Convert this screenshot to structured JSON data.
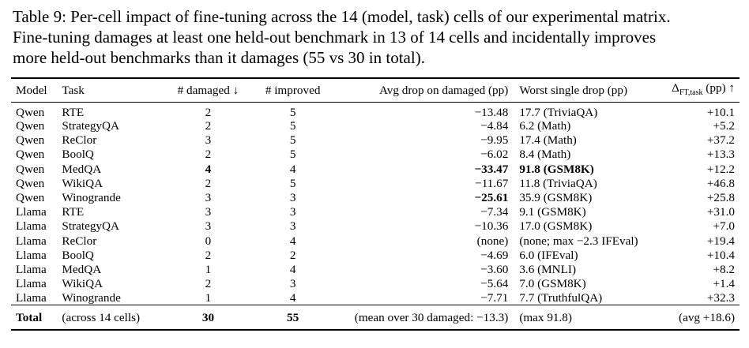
{
  "caption": {
    "line1": "Table 9: Per-cell impact of fine-tuning across the 14 (model, task) cells of our experimental matrix.",
    "line2": "Fine-tuning damages at least one held-out benchmark in 13 of 14 cells and incidentally improves",
    "line3": "more held-out benchmarks than it damages (55 vs 30 in total)."
  },
  "headers": {
    "model": "Model",
    "task": "Task",
    "damaged": "# damaged ↓",
    "improved": "# improved",
    "avg_drop": "Avg drop on damaged (pp)",
    "worst": "Worst single drop (pp)",
    "delta_symbol": "Δ",
    "delta_sub": "FT,task",
    "delta_suffix": " (pp) ↑"
  },
  "rows": [
    {
      "model": "Qwen",
      "task": "RTE",
      "damaged": "2",
      "improved": "5",
      "avg_drop": "−13.48",
      "worst": "17.7 (TriviaQA)",
      "delta": "+10.1"
    },
    {
      "model": "Qwen",
      "task": "StrategyQA",
      "damaged": "2",
      "improved": "5",
      "avg_drop": "−4.84",
      "worst": "6.2 (Math)",
      "delta": "+5.2"
    },
    {
      "model": "Qwen",
      "task": "ReClor",
      "damaged": "3",
      "improved": "5",
      "avg_drop": "−9.95",
      "worst": "17.4 (Math)",
      "delta": "+37.2"
    },
    {
      "model": "Qwen",
      "task": "BoolQ",
      "damaged": "2",
      "improved": "5",
      "avg_drop": "−6.02",
      "worst": "8.4 (Math)",
      "delta": "+13.3"
    },
    {
      "model": "Qwen",
      "task": "MedQA",
      "damaged": "4",
      "improved": "4",
      "avg_drop": "−33.47",
      "worst": "91.8 (GSM8K)",
      "delta": "+12.2"
    },
    {
      "model": "Qwen",
      "task": "WikiQA",
      "damaged": "2",
      "improved": "5",
      "avg_drop": "−11.67",
      "worst": "11.8 (TriviaQA)",
      "delta": "+46.8"
    },
    {
      "model": "Qwen",
      "task": "Winogrande",
      "damaged": "3",
      "improved": "3",
      "avg_drop": "−25.61",
      "worst": "35.9 (GSM8K)",
      "delta": "+25.8"
    },
    {
      "model": "Llama",
      "task": "RTE",
      "damaged": "3",
      "improved": "3",
      "avg_drop": "−7.34",
      "worst": "9.1 (GSM8K)",
      "delta": "+31.0"
    },
    {
      "model": "Llama",
      "task": "StrategyQA",
      "damaged": "3",
      "improved": "3",
      "avg_drop": "−10.36",
      "worst": "17.0 (GSM8K)",
      "delta": "+7.0"
    },
    {
      "model": "Llama",
      "task": "ReClor",
      "damaged": "0",
      "improved": "4",
      "avg_drop": "(none)",
      "worst": "(none; max −2.3 IFEval)",
      "delta": "+19.4"
    },
    {
      "model": "Llama",
      "task": "BoolQ",
      "damaged": "2",
      "improved": "2",
      "avg_drop": "−4.69",
      "worst": "6.0 (IFEval)",
      "delta": "+10.4"
    },
    {
      "model": "Llama",
      "task": "MedQA",
      "damaged": "1",
      "improved": "4",
      "avg_drop": "−3.60",
      "worst": "3.6 (MNLI)",
      "delta": "+8.2"
    },
    {
      "model": "Llama",
      "task": "WikiQA",
      "damaged": "2",
      "improved": "3",
      "avg_drop": "−5.64",
      "worst": "7.0 (GSM8K)",
      "delta": "+1.4"
    },
    {
      "model": "Llama",
      "task": "Winogrande",
      "damaged": "1",
      "improved": "4",
      "avg_drop": "−7.71",
      "worst": "7.7 (TruthfulQA)",
      "delta": "+32.3"
    }
  ],
  "total": {
    "model": "Total",
    "task": "(across 14 cells)",
    "damaged": "30",
    "improved": "55",
    "avg_drop": "(mean over 30 damaged: −13.3)",
    "worst": "(max 91.8)",
    "delta": "(avg +18.6)"
  }
}
